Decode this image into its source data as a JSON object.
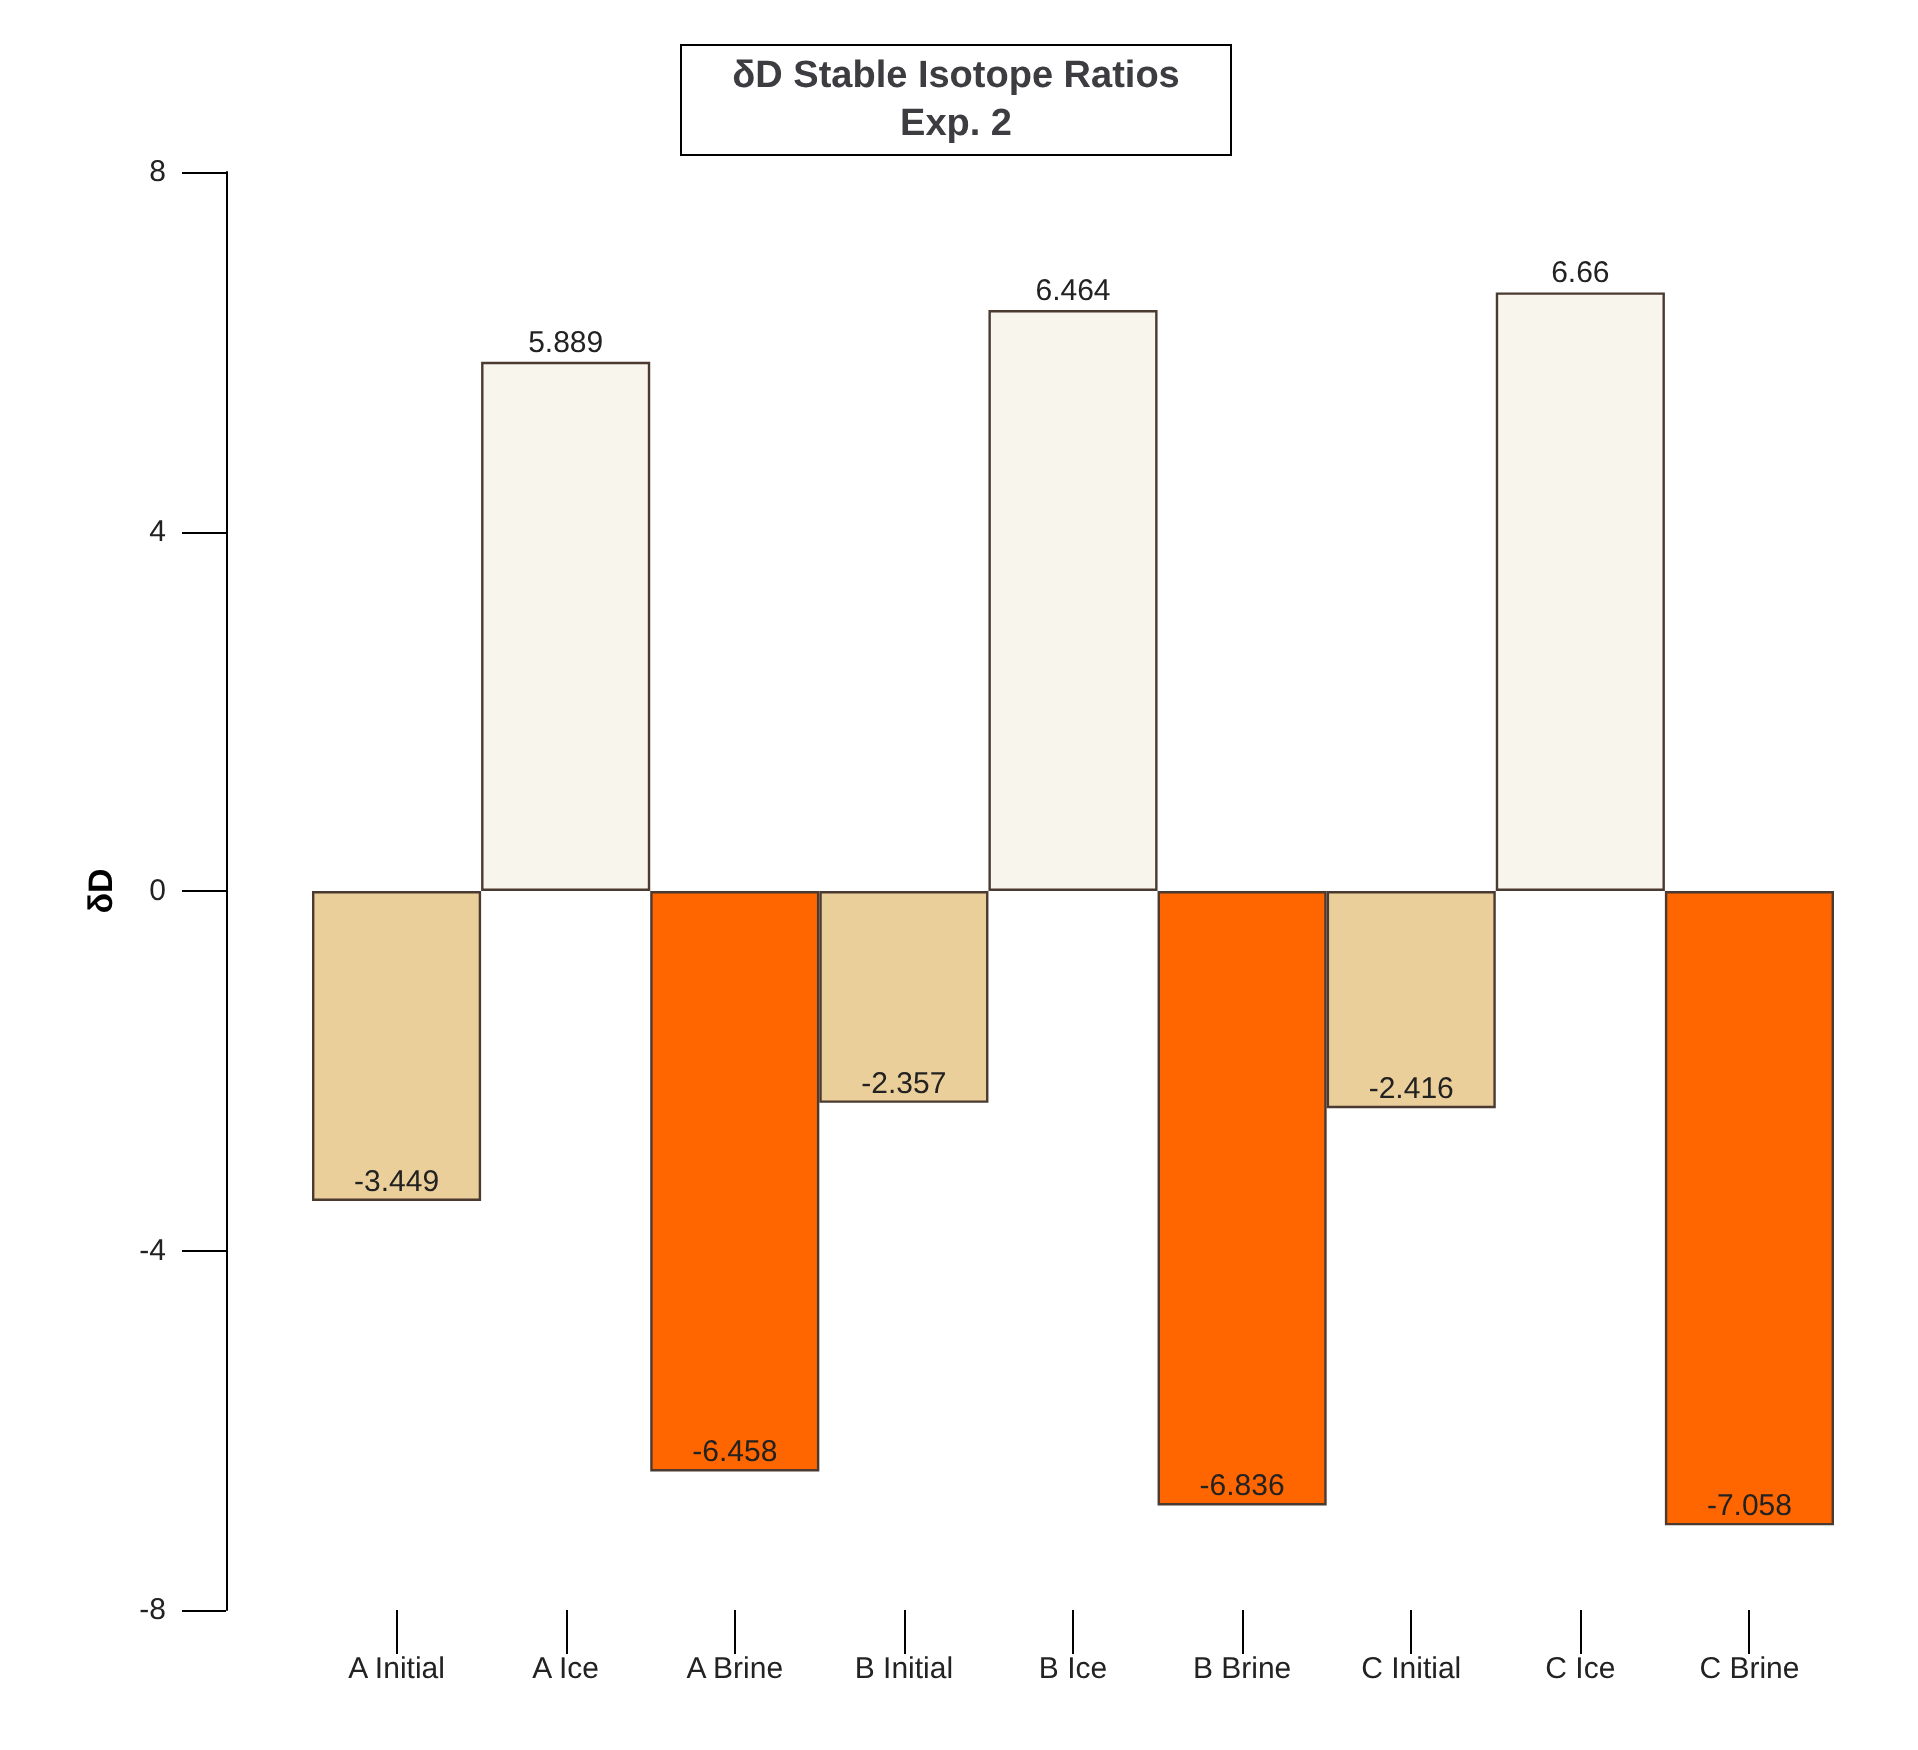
{
  "chart_data": {
    "type": "bar",
    "title": "δD Stable Isotope Ratios\nExp. 2",
    "ylabel": "δD",
    "categories": [
      "A Initial",
      "A Ice",
      "A Brine",
      "B Initial",
      "B Ice",
      "B Brine",
      "C Initial",
      "C Ice",
      "C Brine"
    ],
    "values": [
      -3.449,
      5.889,
      -6.458,
      -2.357,
      6.464,
      -6.836,
      -2.416,
      6.66,
      -7.058
    ],
    "colors": [
      "#ebcf9a",
      "#f8f5ec",
      "#ff6600",
      "#ebcf9a",
      "#f8f5ec",
      "#ff6600",
      "#ebcf9a",
      "#f8f5ec",
      "#ff6600"
    ],
    "ylim": [
      -8,
      8
    ],
    "yticks": [
      -8,
      -4,
      0,
      4,
      8
    ],
    "data_labels": true,
    "grid": false
  }
}
